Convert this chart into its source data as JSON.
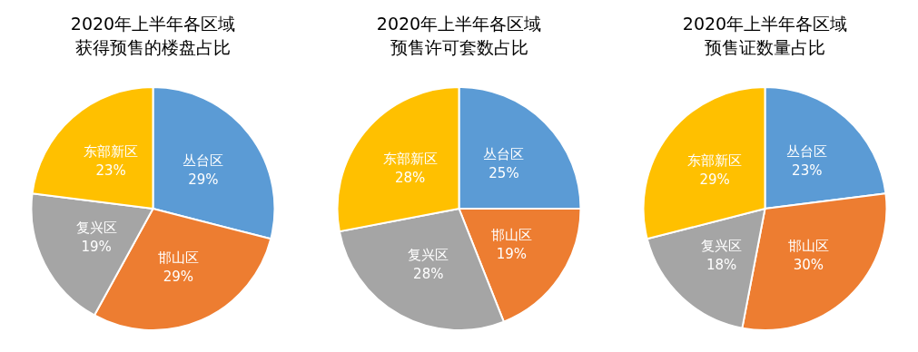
{
  "chart_data": [
    {
      "type": "pie",
      "title": "2020年上半年各区域获得预售的楼盘占比",
      "categories": [
        "丛台区",
        "邯山区",
        "复兴区",
        "东部新区"
      ],
      "values": [
        29,
        29,
        19,
        23
      ],
      "value_labels": [
        "29%",
        "29%",
        "19%",
        "23%"
      ],
      "colors": [
        "#5b9bd5",
        "#ed7d31",
        "#a5a5a5",
        "#ffc000"
      ]
    },
    {
      "type": "pie",
      "title": "2020年上半年各区域预售许可套数占比",
      "categories": [
        "丛台区",
        "邯山区",
        "复兴区",
        "东部新区"
      ],
      "values": [
        25,
        19,
        28,
        28
      ],
      "value_labels": [
        "25%",
        "19%",
        "28%",
        "28%"
      ],
      "colors": [
        "#5b9bd5",
        "#ed7d31",
        "#a5a5a5",
        "#ffc000"
      ]
    },
    {
      "type": "pie",
      "title": "2020年上半年各区域预售证数量占比",
      "categories": [
        "丛台区",
        "邯山区",
        "复兴区",
        "东部新区"
      ],
      "values": [
        23,
        30,
        18,
        29
      ],
      "value_labels": [
        "23%",
        "30%",
        "18%",
        "29%"
      ],
      "colors": [
        "#5b9bd5",
        "#ed7d31",
        "#a5a5a5",
        "#ffc000"
      ]
    }
  ]
}
